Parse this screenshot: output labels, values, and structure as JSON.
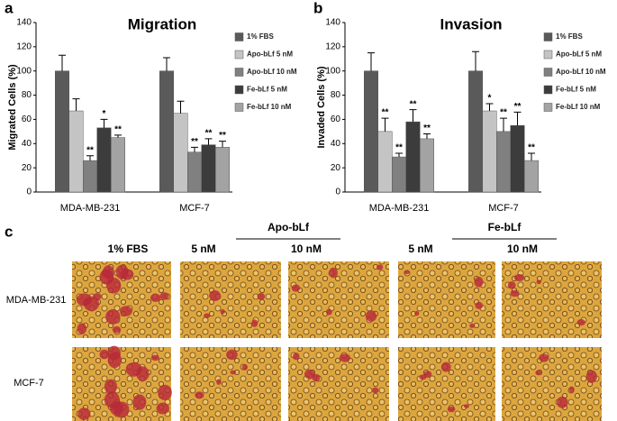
{
  "chart_data": [
    {
      "type": "bar",
      "panel_label": "a",
      "title": "Migration",
      "y_label": "Migrated Cells (%)",
      "categories": [
        "MDA-MB-231",
        "MCF-7"
      ],
      "ylim": [
        0,
        140
      ],
      "yticks": [
        0,
        20,
        40,
        60,
        80,
        100,
        120,
        140
      ],
      "series": [
        {
          "name": "1% FBS",
          "color": "#5a5a5a",
          "values": [
            100,
            100
          ],
          "errors": [
            13,
            11
          ],
          "annotations": [
            null,
            null
          ]
        },
        {
          "name": "Apo-bLf 5 nM",
          "color": "#c4c4c4",
          "values": [
            67,
            65
          ],
          "errors": [
            10,
            10
          ],
          "annotations": [
            null,
            null
          ]
        },
        {
          "name": "Apo-bLf 10 nM",
          "color": "#808080",
          "values": [
            26,
            33
          ],
          "errors": [
            4,
            4
          ],
          "annotations": [
            "**",
            "**"
          ]
        },
        {
          "name": "Fe-bLf 5 nM",
          "color": "#3c3c3c",
          "values": [
            53,
            39
          ],
          "errors": [
            7,
            5
          ],
          "annotations": [
            "*",
            "**"
          ]
        },
        {
          "name": "Fe-bLf 10 nM",
          "color": "#a3a3a3",
          "values": [
            45,
            37
          ],
          "errors": [
            2,
            5
          ],
          "annotations": [
            "**",
            "**"
          ]
        }
      ]
    },
    {
      "type": "bar",
      "panel_label": "b",
      "title": "Invasion",
      "y_label": "Invaded Cells (%)",
      "categories": [
        "MDA-MB-231",
        "MCF-7"
      ],
      "ylim": [
        0,
        140
      ],
      "yticks": [
        0,
        20,
        40,
        60,
        80,
        100,
        120,
        140
      ],
      "series": [
        {
          "name": "1% FBS",
          "color": "#5a5a5a",
          "values": [
            100,
            100
          ],
          "errors": [
            15,
            16
          ],
          "annotations": [
            null,
            null
          ]
        },
        {
          "name": "Apo-bLf 5 nM",
          "color": "#c4c4c4",
          "values": [
            50,
            67
          ],
          "errors": [
            11,
            6
          ],
          "annotations": [
            "**",
            "*"
          ]
        },
        {
          "name": "Apo-bLf 10 nM",
          "color": "#808080",
          "values": [
            29,
            50
          ],
          "errors": [
            3,
            11
          ],
          "annotations": [
            "**",
            "**"
          ]
        },
        {
          "name": "Fe-bLf 5 nM",
          "color": "#3c3c3c",
          "values": [
            58,
            55
          ],
          "errors": [
            10,
            11
          ],
          "annotations": [
            "**",
            "**"
          ]
        },
        {
          "name": "Fe-bLf 10 nM",
          "color": "#a3a3a3",
          "values": [
            44,
            26
          ],
          "errors": [
            4,
            6
          ],
          "annotations": [
            "**",
            "**"
          ]
        }
      ]
    }
  ],
  "panel_c": {
    "label": "c",
    "groups": [
      "Apo-bLf",
      "Fe-bLf"
    ],
    "columns": [
      "1% FBS",
      "5 nM",
      "10 nM",
      "5 nM",
      "10 nM"
    ],
    "rows": [
      "MDA-MB-231",
      "MCF-7"
    ]
  }
}
